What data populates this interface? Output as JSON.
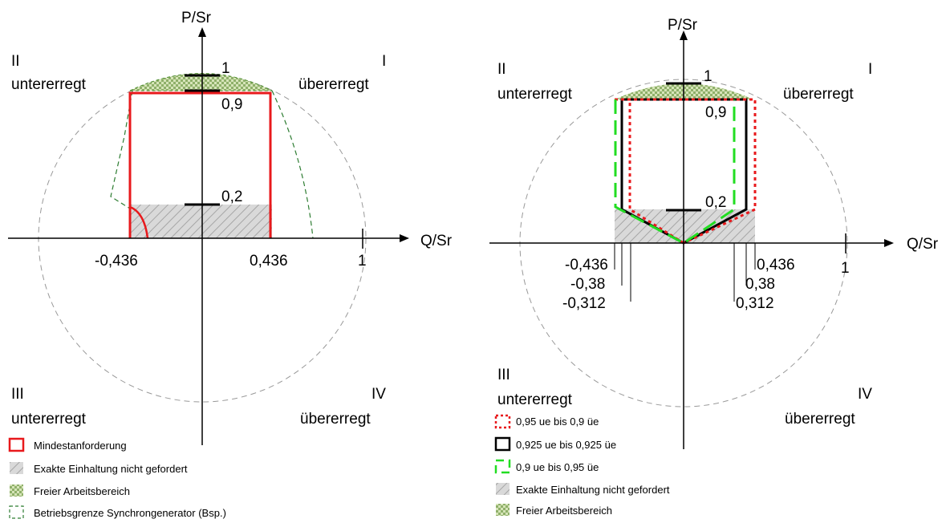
{
  "left": {
    "y_axis_label": "P/Sr",
    "x_axis_label": "Q/Sr",
    "quadrants": {
      "q1_num": "I",
      "q1_text": "übererregt",
      "q2_num": "II",
      "q2_text": "untererregt",
      "q3_num": "III",
      "q3_text": "untererregt",
      "q4_num": "IV",
      "q4_text": "übererregt"
    },
    "ticks": {
      "p1": "1",
      "p09": "0,9",
      "p02": "0,2",
      "qneg": "-0,436",
      "qpos": "0,436",
      "q1": "1"
    },
    "legend": [
      "Mindestanforderung",
      "Exakte Einhaltung nicht gefordert",
      "Freier Arbeitsbereich",
      "Betriebsgrenze Synchrongenerator (Bsp.)"
    ],
    "colors": {
      "requirement": "#e8191c",
      "generator": "#2e7d32",
      "hatch": "#c8c8c8"
    }
  },
  "right": {
    "y_axis_label": "P/Sr",
    "x_axis_label": "Q/Sr",
    "quadrants": {
      "q1_num": "I",
      "q1_text": "übererregt",
      "q2_num": "II",
      "q2_text": "untererregt",
      "q3_num": "III",
      "q3_text": "untererregt",
      "q4_num": "IV",
      "q4_text": "übererregt"
    },
    "ticks": {
      "p1": "1",
      "p09": "0,9",
      "p02": "0,2",
      "qneg436": "-0,436",
      "qneg38": "-0,38",
      "qneg312": "-0,312",
      "qpos436": "0,436",
      "qpos38": "0,38",
      "qpos312": "0,312",
      "q1": "1"
    },
    "legend": [
      "0,95 ue bis 0,9 üe",
      "0,925 ue bis 0,925 üe",
      "0,9 ue bis 0,95 üe",
      "Exakte Einhaltung nicht gefordert",
      "Freier Arbeitsbereich"
    ],
    "colors": {
      "red_dotted": "#e8191c",
      "black": "#000000",
      "green_dashed": "#22dd22",
      "hatch": "#c8c8c8"
    }
  }
}
